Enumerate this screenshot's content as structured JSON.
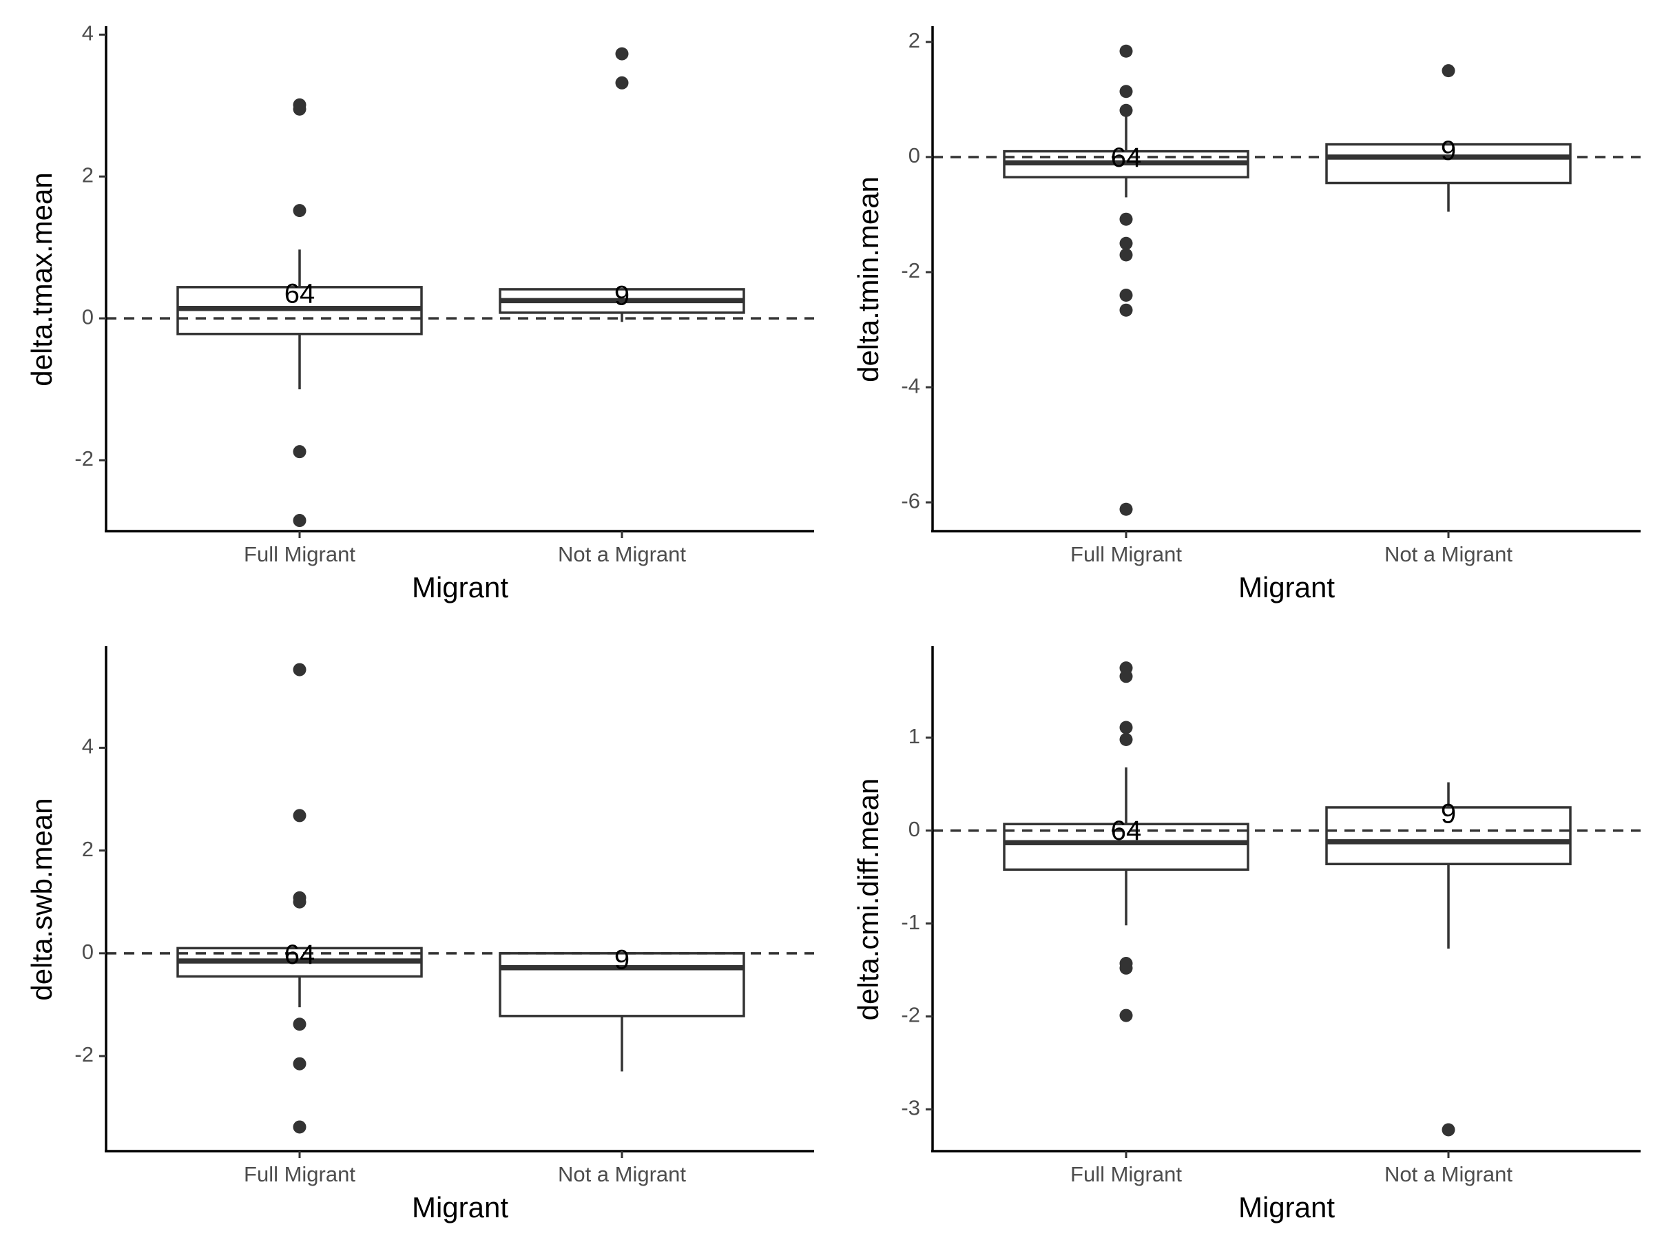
{
  "figure": {
    "styles": {
      "box_stroke": "#333333",
      "outlier_fill": "#333333",
      "reference_line": "#333333",
      "axis_line": "#000000",
      "background": "#ffffff"
    }
  },
  "chart_data": [
    {
      "type": "boxplot",
      "xlabel": "Migrant",
      "ylabel": "delta.tmax.mean",
      "categories": [
        "Full Migrant",
        "Not a Migrant"
      ],
      "ylim": [
        -3.0,
        4.1
      ],
      "yticks": [
        -2,
        0,
        2,
        4
      ],
      "reference_line": 0,
      "boxes": [
        {
          "q1": -0.22,
          "median": 0.14,
          "q3": 0.44,
          "whisker_low": -1.0,
          "whisker_high": 0.97,
          "n_label": "64",
          "outliers": [
            3.01,
            2.95,
            1.52,
            -1.88,
            -2.85
          ]
        },
        {
          "q1": 0.08,
          "median": 0.25,
          "q3": 0.41,
          "whisker_low": -0.05,
          "whisker_high": 0.41,
          "n_label": "9",
          "outliers": [
            3.73,
            3.32
          ]
        }
      ]
    },
    {
      "type": "boxplot",
      "xlabel": "Migrant",
      "ylabel": "delta.tmin.mean",
      "categories": [
        "Full Migrant",
        "Not a Migrant"
      ],
      "ylim": [
        -6.5,
        2.25
      ],
      "yticks": [
        -6,
        -4,
        -2,
        0,
        2
      ],
      "reference_line": 0,
      "boxes": [
        {
          "q1": -0.35,
          "median": -0.1,
          "q3": 0.1,
          "whisker_low": -0.7,
          "whisker_high": 0.8,
          "n_label": "64",
          "outliers": [
            1.84,
            1.14,
            0.81,
            -1.08,
            -1.5,
            -1.7,
            -2.4,
            -2.66,
            -6.12
          ]
        },
        {
          "q1": -0.45,
          "median": 0.0,
          "q3": 0.22,
          "whisker_low": -0.95,
          "whisker_high": 0.22,
          "n_label": "9",
          "outliers": [
            1.5
          ]
        }
      ]
    },
    {
      "type": "boxplot",
      "xlabel": "Migrant",
      "ylabel": "delta.swb.mean",
      "categories": [
        "Full Migrant",
        "Not a Migrant"
      ],
      "ylim": [
        -3.85,
        5.95
      ],
      "yticks": [
        -2,
        0,
        2,
        4
      ],
      "reference_line": 0,
      "boxes": [
        {
          "q1": -0.45,
          "median": -0.15,
          "q3": 0.1,
          "whisker_low": -1.05,
          "whisker_high": 0.1,
          "n_label": "64",
          "outliers": [
            5.52,
            2.68,
            1.08,
            1.0,
            -1.38,
            -2.15,
            -3.38
          ]
        },
        {
          "q1": -1.22,
          "median": -0.28,
          "q3": 0.0,
          "whisker_low": -2.3,
          "whisker_high": 0.0,
          "n_label": "9",
          "outliers": []
        }
      ]
    },
    {
      "type": "boxplot",
      "xlabel": "Migrant",
      "ylabel": "delta.cmi.diff.mean",
      "categories": [
        "Full Migrant",
        "Not a Migrant"
      ],
      "ylim": [
        -3.45,
        1.97
      ],
      "yticks": [
        -3,
        -2,
        -1,
        0,
        1
      ],
      "reference_line": 0,
      "boxes": [
        {
          "q1": -0.42,
          "median": -0.13,
          "q3": 0.07,
          "whisker_low": -1.02,
          "whisker_high": 0.68,
          "n_label": "64",
          "outliers": [
            1.75,
            1.66,
            1.11,
            0.98,
            -1.43,
            -1.48,
            -1.99
          ]
        },
        {
          "q1": -0.36,
          "median": -0.12,
          "q3": 0.25,
          "whisker_low": -1.27,
          "whisker_high": 0.52,
          "n_label": "9",
          "outliers": [
            -3.22
          ]
        }
      ]
    }
  ]
}
